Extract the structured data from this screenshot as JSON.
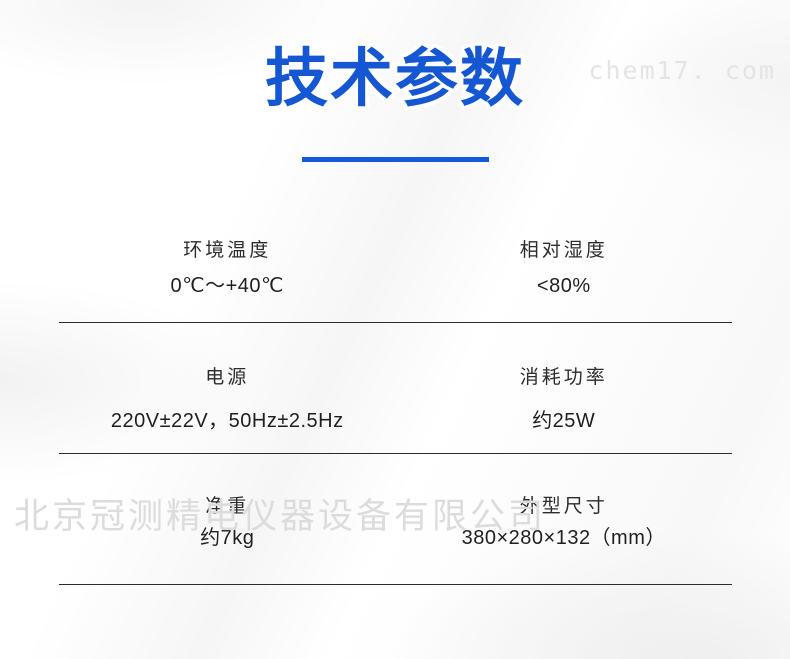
{
  "page": {
    "title": "技术参数",
    "accent_color": "#1557d2",
    "divider_color": "#2c2c2c",
    "text_color": "#1f1f1f",
    "watermark_color": "#dcdcdc"
  },
  "watermarks": {
    "site": "chem17. com",
    "company": "北京冠测精电仪器设备有限公司"
  },
  "specs": {
    "rows": [
      {
        "cells": [
          {
            "label": "环境温度",
            "value": "0℃～+40℃"
          },
          {
            "label": "相对湿度",
            "value": "<80%"
          }
        ]
      },
      {
        "cells": [
          {
            "label": "电源",
            "value": "220V±22V，50Hz±2.5Hz"
          },
          {
            "label": "消耗功率",
            "value": "约25W"
          }
        ]
      },
      {
        "cells": [
          {
            "label": "净重",
            "value": "约7kg"
          },
          {
            "label": "外型尺寸",
            "value": "380×280×132（mm）"
          }
        ]
      }
    ]
  }
}
